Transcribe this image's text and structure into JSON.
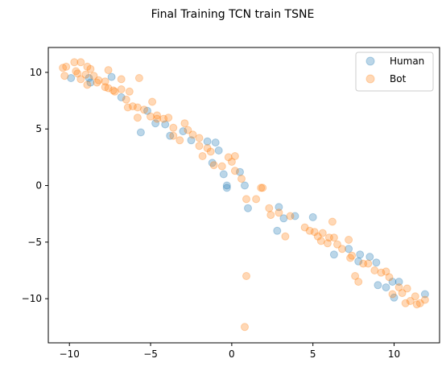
{
  "chart_data": {
    "type": "scatter",
    "title": "Final Training TCN train TSNE",
    "xlabel": "",
    "ylabel": "",
    "xlim": [
      -11.3,
      12.8
    ],
    "ylim": [
      -13.9,
      12.2
    ],
    "xticks": [
      -10,
      -5,
      0,
      5,
      10
    ],
    "yticks": [
      -10,
      -5,
      0,
      5,
      10
    ],
    "x_tick_labels": [
      "−10",
      "−5",
      "0",
      "5",
      "10"
    ],
    "y_tick_labels": [
      "−10",
      "−5",
      "0",
      "5",
      "10"
    ],
    "grid": false,
    "legend": "top-right",
    "series": [
      {
        "name": "Human",
        "color": "#1f77b4",
        "alpha": 0.3,
        "points": [
          [
            -9.9,
            9.5
          ],
          [
            -8.8,
            9.5
          ],
          [
            -8.7,
            9.1
          ],
          [
            -7.4,
            9.6
          ],
          [
            -6.8,
            7.8
          ],
          [
            -5.6,
            4.7
          ],
          [
            -5.2,
            6.6
          ],
          [
            -4.7,
            5.5
          ],
          [
            -4.1,
            5.4
          ],
          [
            -3.8,
            4.4
          ],
          [
            -3.0,
            4.8
          ],
          [
            -2.5,
            4.0
          ],
          [
            -1.5,
            3.9
          ],
          [
            -1.0,
            3.8
          ],
          [
            -0.8,
            3.1
          ],
          [
            -1.2,
            2.0
          ],
          [
            -0.5,
            1.0
          ],
          [
            -0.3,
            0.0
          ],
          [
            -0.3,
            -0.2
          ],
          [
            0.5,
            1.2
          ],
          [
            0.8,
            0.0
          ],
          [
            1.0,
            -2.0
          ],
          [
            2.9,
            -1.9
          ],
          [
            3.2,
            -2.9
          ],
          [
            3.9,
            -2.7
          ],
          [
            2.8,
            -4.0
          ],
          [
            5.0,
            -2.8
          ],
          [
            6.3,
            -6.1
          ],
          [
            7.2,
            -5.6
          ],
          [
            7.8,
            -6.7
          ],
          [
            7.9,
            -6.1
          ],
          [
            8.5,
            -6.3
          ],
          [
            8.9,
            -6.8
          ],
          [
            9.0,
            -8.8
          ],
          [
            9.5,
            -9.0
          ],
          [
            9.9,
            -8.5
          ],
          [
            10.0,
            -9.9
          ],
          [
            10.3,
            -8.5
          ],
          [
            11.9,
            -9.6
          ]
        ]
      },
      {
        "name": "Bot",
        "color": "#ff7f0e",
        "alpha": 0.3,
        "points": [
          [
            -10.4,
            10.4
          ],
          [
            -10.2,
            10.5
          ],
          [
            -10.3,
            9.7
          ],
          [
            -9.7,
            10.9
          ],
          [
            -9.6,
            10.1
          ],
          [
            -9.3,
            10.9
          ],
          [
            -9.5,
            9.9
          ],
          [
            -9.3,
            9.4
          ],
          [
            -9.0,
            9.8
          ],
          [
            -8.9,
            10.5
          ],
          [
            -8.7,
            10.3
          ],
          [
            -8.9,
            8.9
          ],
          [
            -8.5,
            9.7
          ],
          [
            -8.3,
            9.1
          ],
          [
            -8.2,
            9.3
          ],
          [
            -7.8,
            9.2
          ],
          [
            -7.6,
            10.2
          ],
          [
            -7.8,
            8.7
          ],
          [
            -7.6,
            8.6
          ],
          [
            -7.3,
            8.4
          ],
          [
            -7.2,
            8.3
          ],
          [
            -6.8,
            9.4
          ],
          [
            -6.8,
            8.5
          ],
          [
            -6.5,
            7.6
          ],
          [
            -6.4,
            6.9
          ],
          [
            -6.3,
            8.3
          ],
          [
            -6.1,
            7.0
          ],
          [
            -5.8,
            6.9
          ],
          [
            -5.8,
            6.0
          ],
          [
            -5.7,
            9.5
          ],
          [
            -5.4,
            6.7
          ],
          [
            -5.0,
            6.1
          ],
          [
            -4.9,
            7.4
          ],
          [
            -4.6,
            6.2
          ],
          [
            -4.6,
            5.9
          ],
          [
            -4.2,
            5.9
          ],
          [
            -3.9,
            6.0
          ],
          [
            -3.6,
            5.1
          ],
          [
            -3.6,
            4.4
          ],
          [
            -3.2,
            4.0
          ],
          [
            -2.9,
            5.5
          ],
          [
            -2.7,
            4.9
          ],
          [
            -2.4,
            4.5
          ],
          [
            -2.0,
            3.5
          ],
          [
            -2.0,
            4.2
          ],
          [
            -1.8,
            2.6
          ],
          [
            -1.5,
            3.3
          ],
          [
            -1.3,
            3.0
          ],
          [
            -1.1,
            1.8
          ],
          [
            -0.6,
            1.7
          ],
          [
            -0.2,
            2.5
          ],
          [
            0.0,
            2.1
          ],
          [
            0.2,
            1.3
          ],
          [
            0.2,
            2.6
          ],
          [
            0.6,
            0.6
          ],
          [
            0.9,
            -1.2
          ],
          [
            1.5,
            -1.2
          ],
          [
            1.8,
            -0.2
          ],
          [
            1.9,
            -0.2
          ],
          [
            2.3,
            -2.0
          ],
          [
            2.4,
            -2.6
          ],
          [
            2.9,
            -2.4
          ],
          [
            3.3,
            -4.5
          ],
          [
            3.6,
            -2.7
          ],
          [
            4.5,
            -3.7
          ],
          [
            4.8,
            -4.0
          ],
          [
            5.1,
            -4.1
          ],
          [
            5.3,
            -4.5
          ],
          [
            5.5,
            -4.9
          ],
          [
            5.6,
            -4.2
          ],
          [
            5.9,
            -5.1
          ],
          [
            6.0,
            -4.6
          ],
          [
            6.2,
            -3.2
          ],
          [
            6.3,
            -4.6
          ],
          [
            6.5,
            -5.2
          ],
          [
            6.8,
            -5.6
          ],
          [
            7.2,
            -4.8
          ],
          [
            7.3,
            -6.4
          ],
          [
            7.4,
            -6.2
          ],
          [
            7.6,
            -8.0
          ],
          [
            7.8,
            -8.5
          ],
          [
            8.1,
            -6.9
          ],
          [
            8.4,
            -6.9
          ],
          [
            8.8,
            -7.5
          ],
          [
            9.2,
            -7.7
          ],
          [
            9.5,
            -7.6
          ],
          [
            9.7,
            -8.1
          ],
          [
            9.9,
            -9.6
          ],
          [
            10.3,
            -9.0
          ],
          [
            10.5,
            -9.5
          ],
          [
            10.7,
            -10.4
          ],
          [
            10.8,
            -9.1
          ],
          [
            11.0,
            -10.2
          ],
          [
            11.3,
            -9.8
          ],
          [
            11.4,
            -10.5
          ],
          [
            11.6,
            -10.4
          ],
          [
            11.9,
            -10.1
          ],
          [
            0.9,
            -8.0
          ],
          [
            0.8,
            -12.5
          ]
        ]
      }
    ]
  }
}
